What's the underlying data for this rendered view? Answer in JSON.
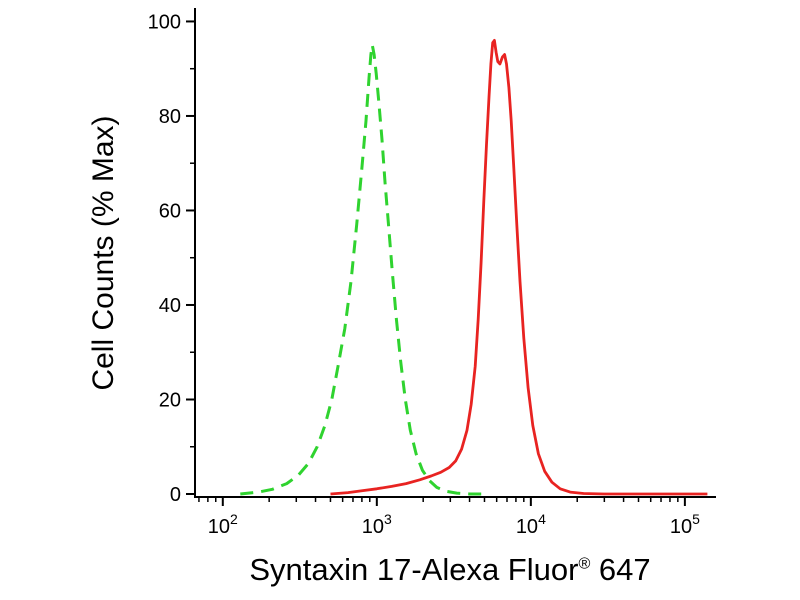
{
  "page": {
    "background": "#ffffff"
  },
  "chart_data": {
    "type": "line",
    "title": "",
    "ylabel": "Cell Counts (% Max)",
    "xlabel_full": "Syntaxin 17-Alexa Fluor® 647",
    "xlabel_parts": {
      "text": "Syntaxin 17-Alexa Fluor",
      "registered": "®",
      "suffix": " 647"
    },
    "x_scale": "log",
    "xlim": [
      66,
      150000
    ],
    "ylim": [
      0,
      102
    ],
    "grid": false,
    "legend": "none",
    "axis_color": "#000000",
    "x_ticks": [
      {
        "value": 100,
        "base": "10",
        "exp": "2"
      },
      {
        "value": 1000,
        "base": "10",
        "exp": "3"
      },
      {
        "value": 10000,
        "base": "10",
        "exp": "4"
      },
      {
        "value": 100000,
        "base": "10",
        "exp": "5"
      }
    ],
    "y_ticks": [
      {
        "value": 0,
        "label": "0"
      },
      {
        "value": 20,
        "label": "20"
      },
      {
        "value": 40,
        "label": "40"
      },
      {
        "value": 60,
        "label": "60"
      },
      {
        "value": 80,
        "label": "80"
      },
      {
        "value": 100,
        "label": "100"
      }
    ],
    "y_minor": [
      10,
      30,
      50,
      70,
      90
    ],
    "series": [
      {
        "name": "green dashed curve",
        "style": "dashed",
        "color": "#2fd32f",
        "width": 3,
        "dash": "13 8",
        "points": [
          [
            130,
            0
          ],
          [
            170,
            0.4
          ],
          [
            210,
            1
          ],
          [
            260,
            2.2
          ],
          [
            310,
            4
          ],
          [
            360,
            6.5
          ],
          [
            410,
            10
          ],
          [
            460,
            14.5
          ],
          [
            510,
            20
          ],
          [
            560,
            27
          ],
          [
            620,
            35
          ],
          [
            680,
            45
          ],
          [
            740,
            57
          ],
          [
            800,
            69
          ],
          [
            850,
            79
          ],
          [
            890,
            88
          ],
          [
            915,
            93
          ],
          [
            935,
            95
          ],
          [
            960,
            93
          ],
          [
            990,
            89
          ],
          [
            1030,
            83
          ],
          [
            1080,
            75
          ],
          [
            1130,
            66
          ],
          [
            1190,
            57
          ],
          [
            1260,
            47
          ],
          [
            1340,
            37
          ],
          [
            1430,
            28
          ],
          [
            1530,
            20
          ],
          [
            1650,
            13.5
          ],
          [
            1800,
            8.5
          ],
          [
            1980,
            5
          ],
          [
            2200,
            2.8
          ],
          [
            2450,
            1.4
          ],
          [
            2800,
            0.6
          ],
          [
            3300,
            0.2
          ],
          [
            4000,
            0
          ],
          [
            5000,
            0
          ]
        ]
      },
      {
        "name": "red solid curve",
        "style": "solid",
        "color": "#e82321",
        "width": 2.8,
        "dash": "",
        "points": [
          [
            500,
            0
          ],
          [
            650,
            0.3
          ],
          [
            800,
            0.7
          ],
          [
            1000,
            1.1
          ],
          [
            1250,
            1.6
          ],
          [
            1550,
            2.2
          ],
          [
            1900,
            3
          ],
          [
            2250,
            3.8
          ],
          [
            2600,
            4.6
          ],
          [
            2950,
            5.6
          ],
          [
            3250,
            7
          ],
          [
            3550,
            9.5
          ],
          [
            3850,
            13.5
          ],
          [
            4100,
            19
          ],
          [
            4350,
            27
          ],
          [
            4550,
            37
          ],
          [
            4750,
            49
          ],
          [
            4950,
            62
          ],
          [
            5150,
            74
          ],
          [
            5350,
            84
          ],
          [
            5500,
            91
          ],
          [
            5650,
            95.5
          ],
          [
            5800,
            96
          ],
          [
            5950,
            93.5
          ],
          [
            6100,
            91.5
          ],
          [
            6300,
            91
          ],
          [
            6550,
            92.5
          ],
          [
            6750,
            93
          ],
          [
            6950,
            91
          ],
          [
            7200,
            86
          ],
          [
            7450,
            79
          ],
          [
            7750,
            69
          ],
          [
            8100,
            57
          ],
          [
            8500,
            45
          ],
          [
            9000,
            33
          ],
          [
            9600,
            22.5
          ],
          [
            10300,
            14.5
          ],
          [
            11200,
            8.5
          ],
          [
            12300,
            4.8
          ],
          [
            13700,
            2.5
          ],
          [
            15500,
            1.1
          ],
          [
            18000,
            0.4
          ],
          [
            22000,
            0.1
          ],
          [
            30000,
            0
          ],
          [
            140000,
            0
          ]
        ]
      }
    ]
  }
}
